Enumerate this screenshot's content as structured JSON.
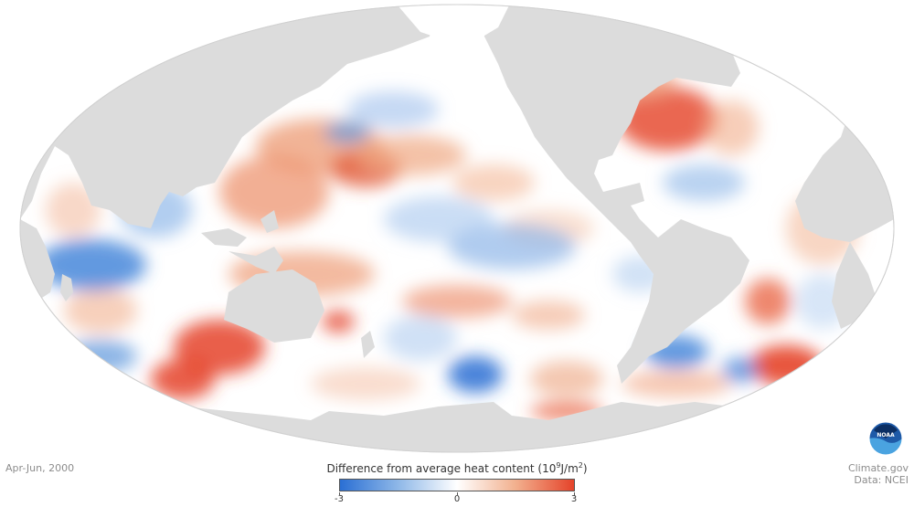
{
  "map": {
    "projection": "Mollweide",
    "period": "Apr-Jun, 2000",
    "legend": {
      "title_main": "Difference from average heat content (10",
      "title_exp": "9",
      "title_unit": "J/m",
      "title_unit_exp": "2",
      "title_close": ")",
      "min_label": "-3",
      "mid_label": "0",
      "max_label": "3",
      "min": -3,
      "max": 3,
      "colors": [
        "#2a6fd4",
        "#8fb8e8",
        "#ffffff",
        "#f2b08e",
        "#e5432a"
      ]
    },
    "credits": {
      "source": "Climate.gov",
      "data": "Data: NCEI"
    },
    "logo_text": "NOAA",
    "land_color": "#dcdcdc",
    "ocean_ellipse_color": "#e3e3e3"
  }
}
